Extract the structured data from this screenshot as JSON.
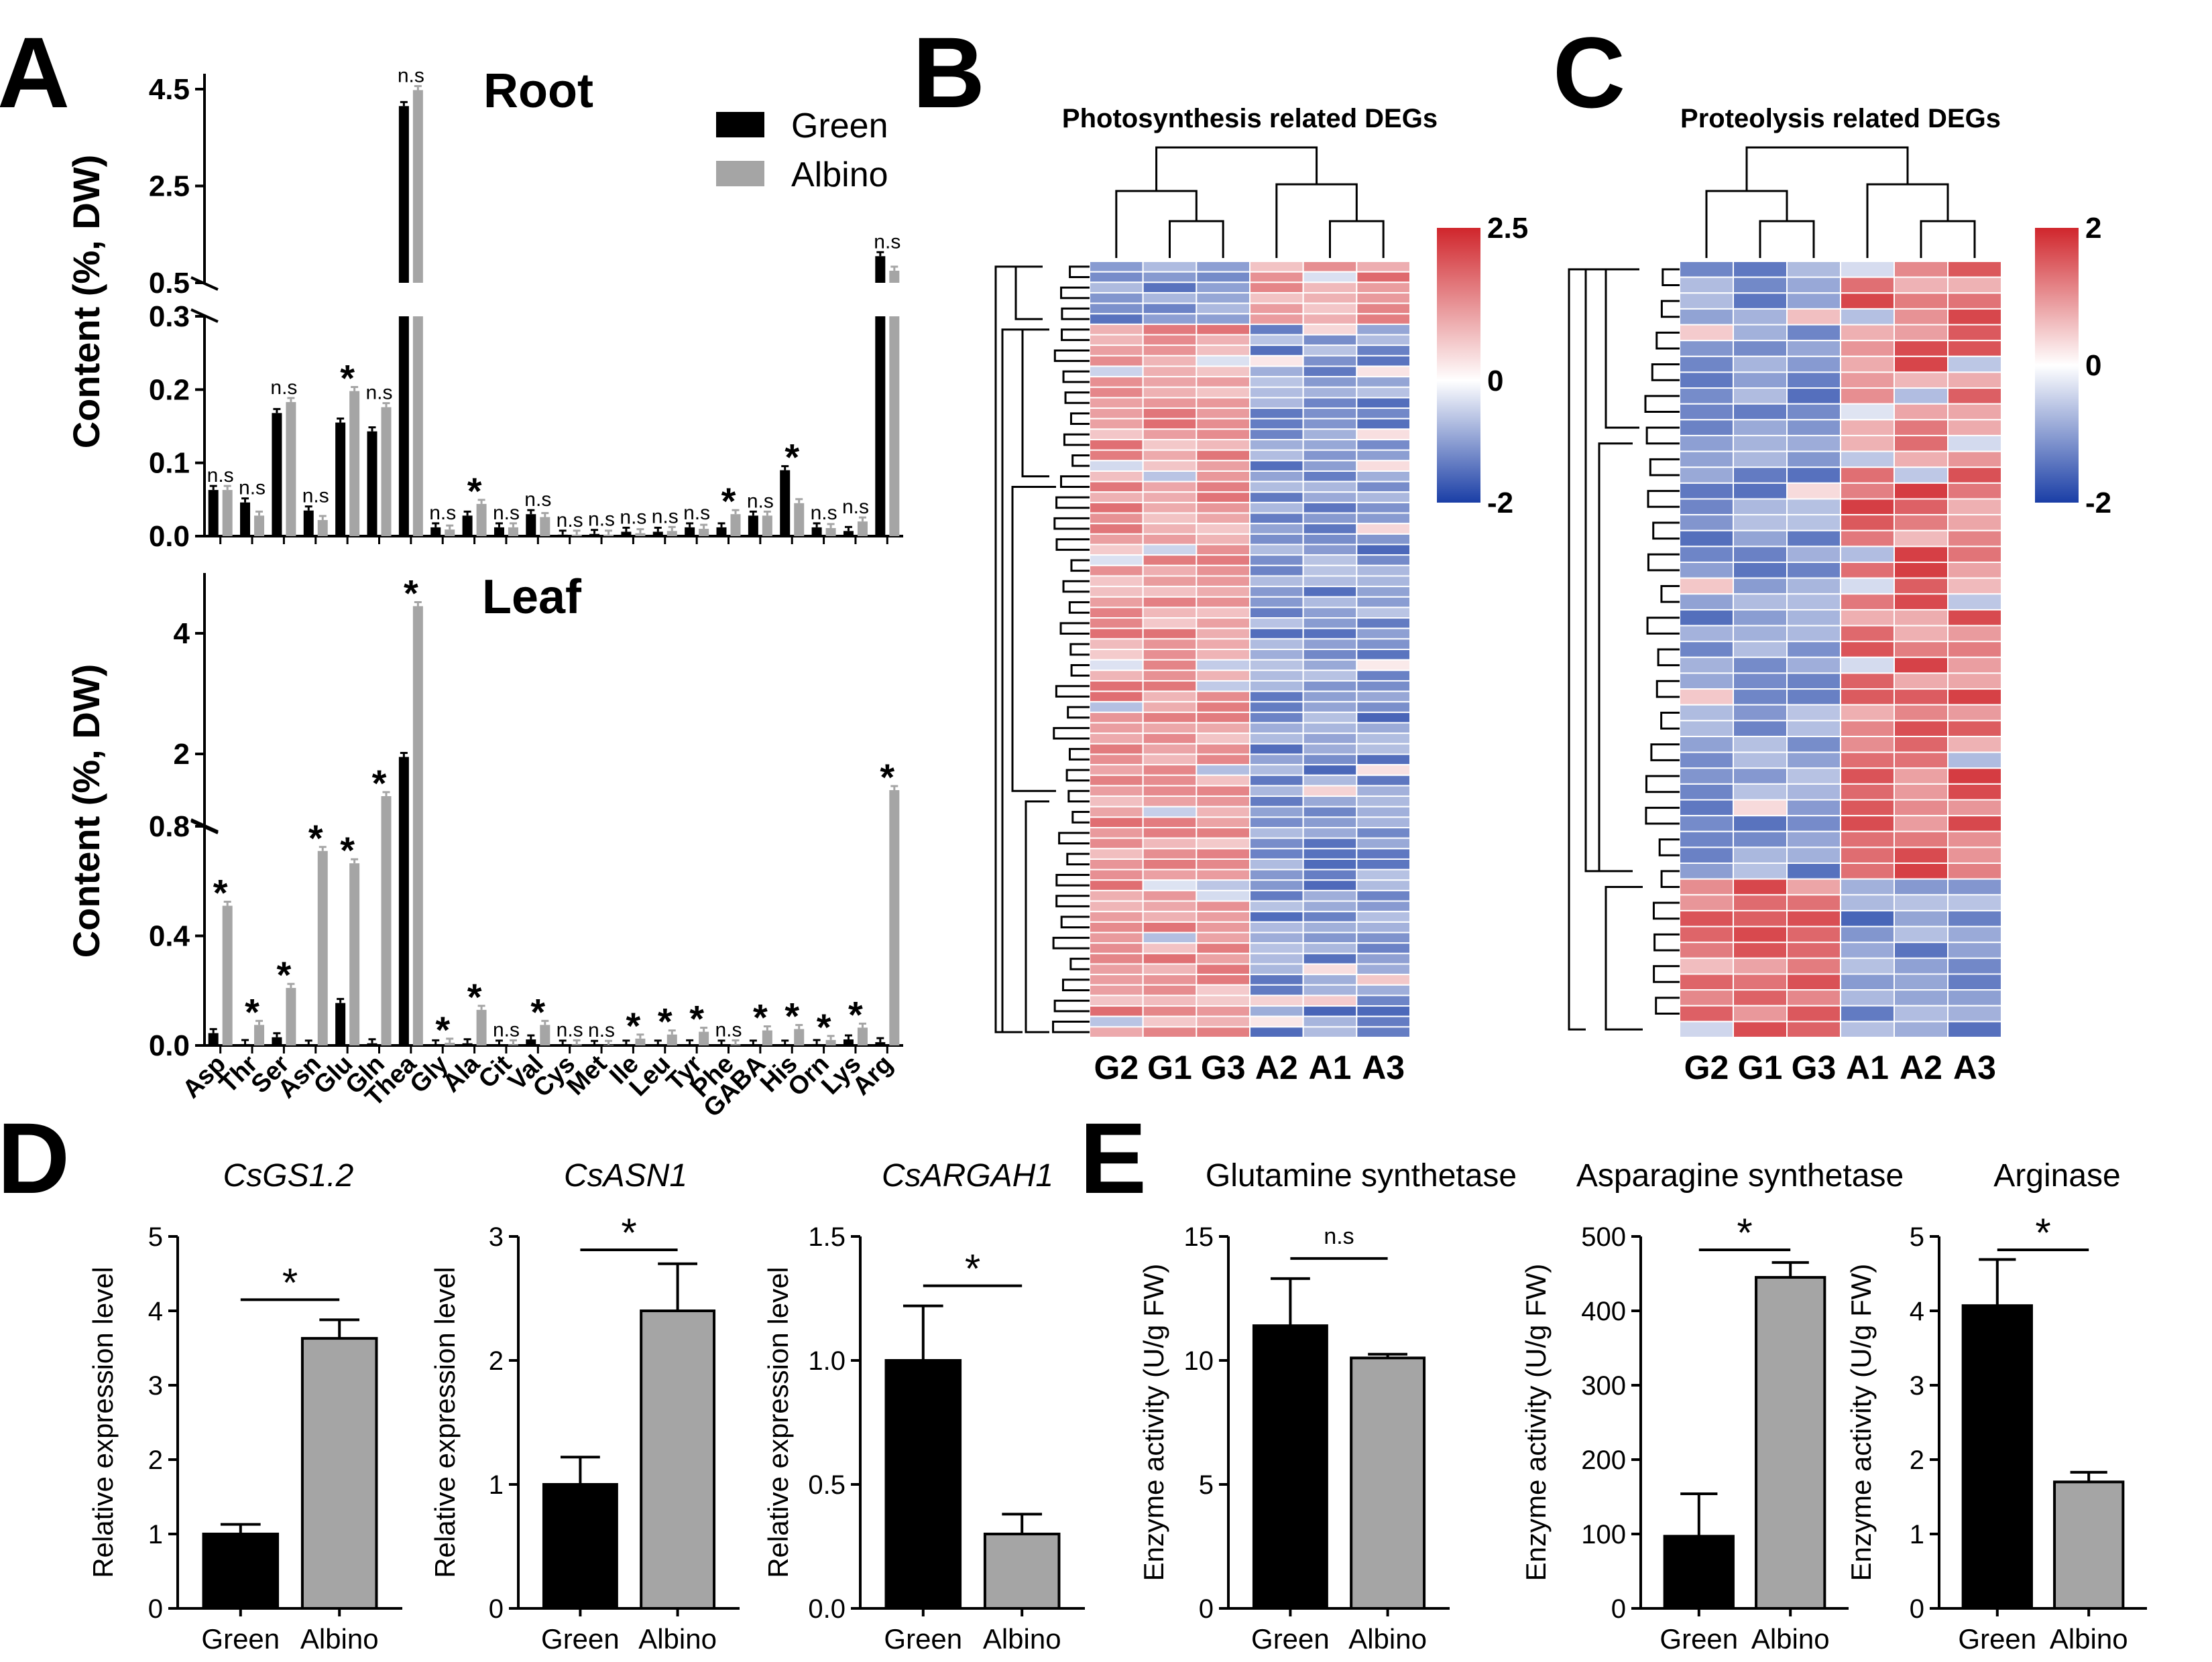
{
  "chart_data": [
    {
      "panel": "A",
      "type": "bar",
      "subtitle": "Root",
      "ylabel": "Content (%, DW)",
      "legend": {
        "entries": [
          "Green",
          "Albino"
        ],
        "placement": "top-right"
      },
      "series_colors": {
        "Green": "#000000",
        "Albino": "#a5a5a5"
      },
      "y_break": {
        "lower": [
          0,
          0.3
        ],
        "upper": [
          0.5,
          4.5
        ]
      },
      "lower_ticks": [
        "0.0",
        "0.1",
        "0.2",
        "0.3"
      ],
      "upper_ticks": [
        "0.5",
        "2.5",
        "4.5"
      ],
      "categories": [
        "Asp",
        "Thr",
        "Ser",
        "Asn",
        "Glu",
        "Gln",
        "Thea",
        "Gly",
        "Ala",
        "Cit",
        "Val",
        "Cys",
        "Met",
        "Ile",
        "Leu",
        "Tyr",
        "Phe",
        "GABA",
        "His",
        "Orn",
        "Lys",
        "Arg"
      ],
      "series": [
        {
          "name": "Green",
          "values": [
            0.063,
            0.046,
            0.168,
            0.035,
            0.155,
            0.143,
            4.15,
            0.012,
            0.028,
            0.012,
            0.03,
            0.002,
            0.003,
            0.006,
            0.006,
            0.012,
            0.012,
            0.028,
            0.09,
            0.012,
            0.007,
            1.05
          ]
        },
        {
          "name": "Albino",
          "values": [
            0.063,
            0.028,
            0.183,
            0.022,
            0.198,
            0.176,
            4.48,
            0.009,
            0.044,
            0.012,
            0.026,
            0.002,
            0.002,
            0.004,
            0.007,
            0.01,
            0.03,
            0.028,
            0.045,
            0.011,
            0.02,
            0.75
          ]
        }
      ],
      "annotations": [
        "n.s",
        "n.s",
        "n.s",
        "n.s",
        "*",
        "n.s",
        "n.s",
        "n.s",
        "*",
        "n.s",
        "n.s",
        "n.s",
        "n.s",
        "n.s",
        "n.s",
        "n.s",
        "*",
        "n.s",
        "*",
        "n.s",
        "n.s",
        "n.s"
      ]
    },
    {
      "panel": "A",
      "type": "bar",
      "subtitle": "Leaf",
      "ylabel": "Content (%, DW)",
      "y_break": {
        "lower": [
          0,
          0.8
        ],
        "upper": [
          0.8,
          5
        ]
      },
      "lower_ticks": [
        "0.0",
        "0.4",
        "0.8"
      ],
      "upper_ticks": [
        "2",
        "4"
      ],
      "categories": [
        "Asp",
        "Thr",
        "Ser",
        "Asn",
        "Glu",
        "Gln",
        "Thea",
        "Gly",
        "Ala",
        "Cit",
        "Val",
        "Cys",
        "Met",
        "Ile",
        "Leu",
        "Tyr",
        "Phe",
        "GABA",
        "His",
        "Orn",
        "Lys",
        "Arg"
      ],
      "series": [
        {
          "name": "Green",
          "values": [
            0.045,
            0.005,
            0.03,
            0.003,
            0.155,
            0.008,
            1.95,
            0.004,
            0.008,
            0.003,
            0.022,
            0.003,
            0.002,
            0.003,
            0.003,
            0.004,
            0.003,
            0.003,
            0.003,
            0.005,
            0.022,
            0.012
          ]
        },
        {
          "name": "Albino",
          "values": [
            0.51,
            0.075,
            0.21,
            0.71,
            0.665,
            1.3,
            4.45,
            0.01,
            0.13,
            0.004,
            0.075,
            0.004,
            0.002,
            0.025,
            0.04,
            0.05,
            0.004,
            0.055,
            0.06,
            0.02,
            0.065,
            1.4
          ]
        }
      ],
      "annotations": [
        "*",
        "*",
        "*",
        "*",
        "*",
        "*",
        "*",
        "*",
        "*",
        "n.s",
        "*",
        "n.s",
        "n.s",
        "*",
        "*",
        "*",
        "n.s",
        "*",
        "*",
        "*",
        "*",
        "*"
      ]
    },
    {
      "panel": "B",
      "type": "heatmap",
      "title": "Photosynthesis related DEGs",
      "columns": [
        "G2",
        "G1",
        "G3",
        "A2",
        "A1",
        "A3"
      ],
      "colorbar": {
        "min": -2,
        "max": 2.5,
        "ticks": [
          "2.5",
          "0",
          "-2"
        ],
        "low_color": "#1a3ea6",
        "mid_color": "#ffffff",
        "high_color": "#d0262c"
      },
      "row_count": 74
    },
    {
      "panel": "C",
      "type": "heatmap",
      "title": "Proteolysis related DEGs",
      "columns": [
        "G2",
        "G1",
        "G3",
        "A1",
        "A2",
        "A3"
      ],
      "colorbar": {
        "min": -2,
        "max": 2,
        "ticks": [
          "2",
          "0",
          "-2"
        ],
        "low_color": "#1a3ea6",
        "mid_color": "#ffffff",
        "high_color": "#d0262c"
      },
      "row_count": 49
    },
    {
      "panel": "D",
      "type": "bar",
      "title": "CsGS1.2",
      "italic": true,
      "ylabel": "Relative expression level",
      "categories": [
        "Green",
        "Albino"
      ],
      "values": [
        1.0,
        3.63
      ],
      "errors": [
        0.13,
        0.25
      ],
      "ylim": [
        0,
        5
      ],
      "ticks": [
        "0",
        "1",
        "2",
        "3",
        "4",
        "5"
      ],
      "significance": "*"
    },
    {
      "panel": "D",
      "type": "bar",
      "title": "CsASN1",
      "italic": true,
      "ylabel": "Relative expression level",
      "categories": [
        "Green",
        "Albino"
      ],
      "values": [
        1.0,
        2.4
      ],
      "errors": [
        0.22,
        0.38
      ],
      "ylim": [
        0,
        3
      ],
      "ticks": [
        "0",
        "1",
        "2",
        "3"
      ],
      "significance": "*"
    },
    {
      "panel": "D",
      "type": "bar",
      "title": "CsARGAH1",
      "italic": true,
      "ylabel": "Relative expression level",
      "categories": [
        "Green",
        "Albino"
      ],
      "values": [
        1.0,
        0.3
      ],
      "errors": [
        0.22,
        0.08
      ],
      "ylim": [
        0,
        1.5
      ],
      "ticks": [
        "0.0",
        "0.5",
        "1.0",
        "1.5"
      ],
      "significance": "*"
    },
    {
      "panel": "E",
      "type": "bar",
      "title": "Glutamine synthetase",
      "italic": false,
      "ylabel": "Enzyme activity (U/g FW)",
      "categories": [
        "Green",
        "Albino"
      ],
      "values": [
        11.4,
        10.1
      ],
      "errors": [
        1.9,
        0.15
      ],
      "ylim": [
        0,
        15
      ],
      "ticks": [
        "0",
        "5",
        "10",
        "15"
      ],
      "significance": "n.s"
    },
    {
      "panel": "E",
      "type": "bar",
      "title": "Asparagine synthetase",
      "italic": false,
      "ylabel": "Enzyme activity (U/g FW)",
      "categories": [
        "Green",
        "Albino"
      ],
      "values": [
        97,
        445
      ],
      "errors": [
        57,
        20
      ],
      "ylim": [
        0,
        500
      ],
      "ticks": [
        "0",
        "100",
        "200",
        "300",
        "400",
        "500"
      ],
      "significance": "*"
    },
    {
      "panel": "E",
      "type": "bar",
      "title": "Arginase",
      "italic": false,
      "ylabel": "Enzyme activity (U/g FW)",
      "categories": [
        "Green",
        "Albino"
      ],
      "values": [
        4.07,
        1.7
      ],
      "errors": [
        0.62,
        0.13
      ],
      "ylim": [
        0,
        5
      ],
      "ticks": [
        "0",
        "1",
        "2",
        "3",
        "4",
        "5"
      ],
      "significance": "*"
    }
  ],
  "panel_labels": [
    "A",
    "B",
    "C",
    "D",
    "E"
  ]
}
